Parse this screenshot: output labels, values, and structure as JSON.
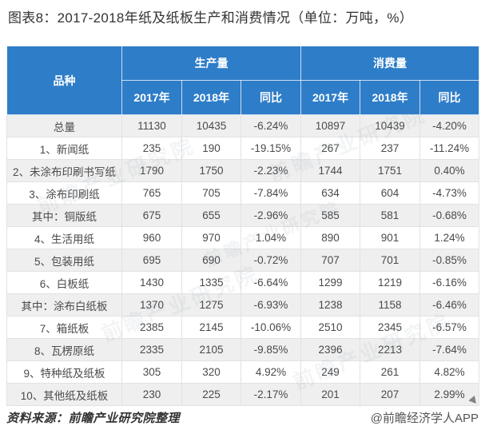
{
  "title": "图表8：2017-2018年纸及纸板生产和消费情况（单位：万吨，%）",
  "chart_data": {
    "type": "table",
    "title": "图表8：2017-2018年纸及纸板生产和消费情况（单位：万吨，%）",
    "species_header": "品种",
    "groups": [
      "生产量",
      "消费量"
    ],
    "sub_headers": [
      "2017年",
      "2018年",
      "同比",
      "2017年",
      "2018年",
      "同比"
    ],
    "rows": [
      [
        "总量",
        "11130",
        "10435",
        "-6.24%",
        "10897",
        "10439",
        "-4.20%"
      ],
      [
        "1、新闻纸",
        "235",
        "190",
        "-19.15%",
        "267",
        "237",
        "-11.24%"
      ],
      [
        "2、未涂布印刷书写纸",
        "1790",
        "1750",
        "-2.23%",
        "1744",
        "1751",
        "0.40%"
      ],
      [
        "3、涂布印刷纸",
        "765",
        "705",
        "-7.84%",
        "634",
        "604",
        "-4.73%"
      ],
      [
        "其中：铜版纸",
        "675",
        "655",
        "-2.96%",
        "585",
        "581",
        "-0.68%"
      ],
      [
        "4、生活用纸",
        "960",
        "970",
        "1.04%",
        "890",
        "901",
        "1.24%"
      ],
      [
        "5、包装用纸",
        "695",
        "690",
        "-0.72%",
        "707",
        "701",
        "-0.85%"
      ],
      [
        "6、白板纸",
        "1430",
        "1335",
        "-6.64%",
        "1299",
        "1219",
        "-6.16%"
      ],
      [
        "其中：涂布白纸板",
        "1370",
        "1275",
        "-6.93%",
        "1238",
        "1158",
        "-6.46%"
      ],
      [
        "7、箱纸板",
        "2385",
        "2145",
        "-10.06%",
        "2510",
        "2345",
        "-6.57%"
      ],
      [
        "8、瓦楞原纸",
        "2335",
        "2105",
        "-9.85%",
        "2396",
        "2213",
        "-7.64%"
      ],
      [
        "9、特种纸及纸板",
        "305",
        "320",
        "4.92%",
        "249",
        "261",
        "4.82%"
      ],
      [
        "10、其他纸及纸板",
        "230",
        "225",
        "-2.17%",
        "201",
        "207",
        "2.99%"
      ]
    ],
    "unit": "万吨，%"
  },
  "footer": {
    "source": "资料来源：前瞻产业研究院整理",
    "credit": "@前瞻经济学人APP"
  },
  "watermark_text": "前瞻产业研究院",
  "colors": {
    "header_blue": "#2e7dc8",
    "row_alt": "#efefef",
    "border": "#e2e2e2",
    "text": "#4a4a4a"
  }
}
